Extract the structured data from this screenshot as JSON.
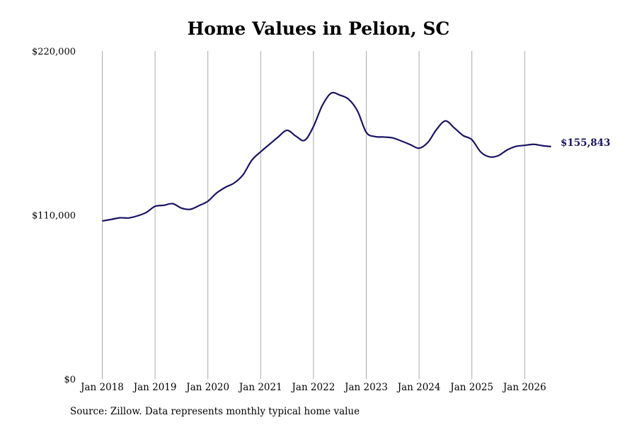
{
  "chart_data": {
    "type": "line",
    "title": "Home Values in Pelion, SC",
    "xlabel": "",
    "ylabel": "",
    "ylim": [
      0,
      220000
    ],
    "xlim": [
      "2018-01",
      "2026-07"
    ],
    "y_ticks": [
      "$0",
      "$110,000",
      "$220,000"
    ],
    "x_ticks": [
      "Jan 2018",
      "Jan 2019",
      "Jan 2020",
      "Jan 2021",
      "Jan 2022",
      "Jan 2023",
      "Jan 2024",
      "Jan 2025",
      "Jan 2026"
    ],
    "grid": "vertical at each January",
    "line_color": "#1b1464",
    "grid_color": "#a9a9a9",
    "end_label": "$155,843",
    "series": [
      {
        "x": [
          "2018-01",
          "2018-03",
          "2018-05",
          "2018-07",
          "2018-09",
          "2018-11",
          "2019-01",
          "2019-03",
          "2019-05",
          "2019-07",
          "2019-09",
          "2019-11",
          "2020-01",
          "2020-03",
          "2020-05",
          "2020-07",
          "2020-09",
          "2020-11",
          "2021-01",
          "2021-03",
          "2021-05",
          "2021-07",
          "2021-09",
          "2021-11",
          "2022-01",
          "2022-03",
          "2022-05",
          "2022-07",
          "2022-09",
          "2022-11",
          "2023-01",
          "2023-03",
          "2023-05",
          "2023-07",
          "2023-09",
          "2023-11",
          "2024-01",
          "2024-03",
          "2024-05",
          "2024-07",
          "2024-09",
          "2024-11",
          "2025-01",
          "2025-03",
          "2025-05",
          "2025-07",
          "2025-09",
          "2025-11",
          "2026-01",
          "2026-03",
          "2026-05",
          "2026-07"
        ],
        "values": [
          106000,
          107000,
          108100,
          108000,
          109400,
          111700,
          115800,
          116500,
          117600,
          114600,
          113800,
          116300,
          119200,
          124800,
          128600,
          131500,
          137000,
          146800,
          152400,
          157400,
          162400,
          166800,
          162900,
          160100,
          169400,
          183400,
          191700,
          190400,
          187600,
          179800,
          165400,
          162600,
          162300,
          161700,
          159600,
          157200,
          154800,
          158700,
          167500,
          173100,
          168400,
          163300,
          160500,
          152300,
          149000,
          149800,
          153600,
          156000,
          156700,
          157400,
          156500,
          155843
        ]
      }
    ]
  }
}
